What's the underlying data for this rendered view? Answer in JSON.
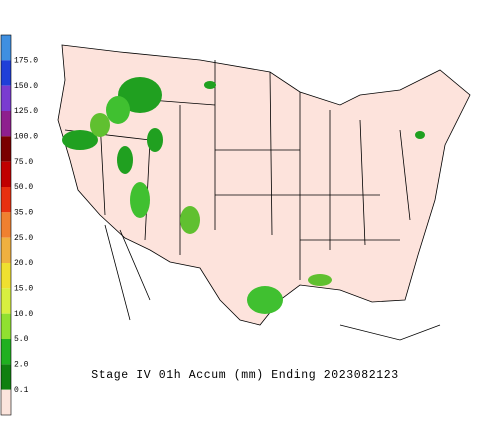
{
  "title": "Stage IV 01h Accum (mm) Ending 2023082123",
  "legend": {
    "colors": [
      "#3f8fe0",
      "#1f3fd8",
      "#7a3cd0",
      "#8e1f8e",
      "#7a0000",
      "#c00000",
      "#e83010",
      "#f08030",
      "#f0b040",
      "#f0e030",
      "#d8f040",
      "#90e030",
      "#20b020",
      "#108010",
      "#fce4dc"
    ],
    "labels": [
      "175.0",
      "150.0",
      "125.0",
      "100.0",
      "75.0",
      "50.0",
      "35.0",
      "25.0",
      "20.0",
      "15.0",
      "10.0",
      "5.0",
      "2.0",
      "0.1"
    ]
  }
}
